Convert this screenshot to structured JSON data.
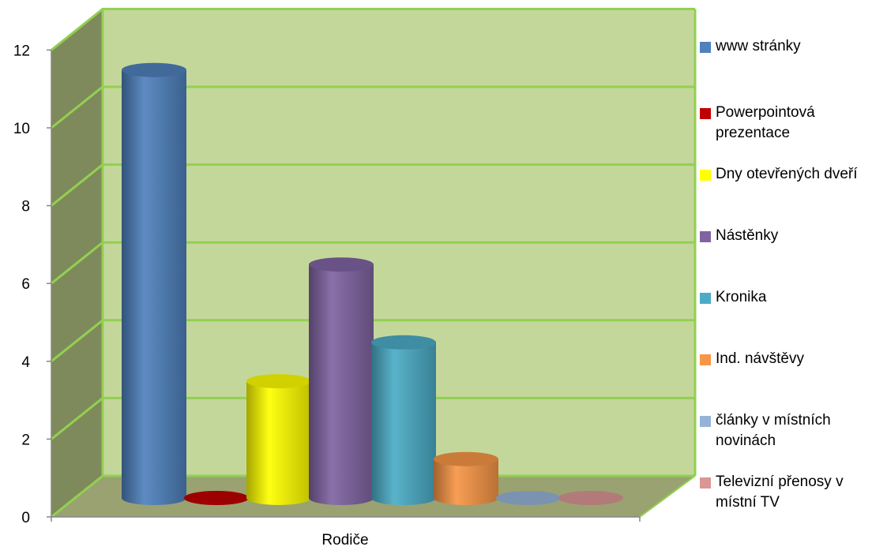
{
  "chart_data": {
    "type": "bar",
    "style": "3d-cylinder",
    "categories": [
      "Rodiče"
    ],
    "xlabel": "",
    "ylabel": "",
    "title": "",
    "ylim": [
      0,
      12
    ],
    "yticks": [
      "0",
      "2",
      "4",
      "6",
      "8",
      "10",
      "12"
    ],
    "grid": true,
    "legend_position": "right",
    "series": [
      {
        "name": "www stránky",
        "values": [
          11
        ],
        "color": "#4F81BD"
      },
      {
        "name": "Powerpointová prezentace",
        "values": [
          0
        ],
        "color": "#C00000"
      },
      {
        "name": "Dny otevřených dveří",
        "values": [
          3
        ],
        "color": "#FFFF00"
      },
      {
        "name": "Nástěnky",
        "values": [
          6
        ],
        "color": "#8064A2"
      },
      {
        "name": "Kronika",
        "values": [
          4
        ],
        "color": "#4BACC6"
      },
      {
        "name": "Ind. návštěvy",
        "values": [
          1
        ],
        "color": "#F79646"
      },
      {
        "name": "články v místních novinách",
        "values": [
          0
        ],
        "color": "#95B3D7"
      },
      {
        "name": "Televizní přenosy v místní TV",
        "values": [
          0
        ],
        "color": "#D99694"
      }
    ],
    "wall_color": "#C4D79B",
    "side_wall_color": "#7F8A5C",
    "floor_color": "#9AA272",
    "gridline_color": "#92D050"
  }
}
